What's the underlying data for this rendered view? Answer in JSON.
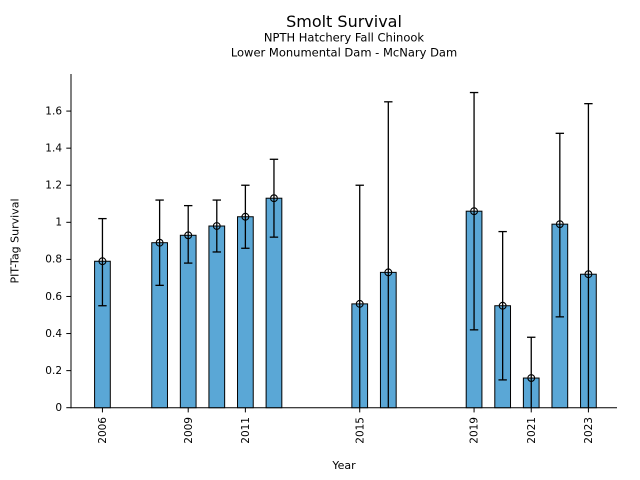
{
  "chart_data": {
    "type": "bar",
    "title": "Smolt Survival",
    "subtitle": [
      "NPTH Hatchery Fall Chinook",
      "Lower Monumental Dam - McNary Dam"
    ],
    "xlabel": "Year",
    "ylabel": "PIT-Tag Survival",
    "xlim": [
      2004.9,
      2024.0
    ],
    "ylim": [
      0,
      1.8
    ],
    "x_tick_years": [
      2006,
      2009,
      2011,
      2015,
      2019,
      2021,
      2023
    ],
    "x_tick_labels": [
      "2006",
      "2009",
      "2011",
      "2015",
      "2019",
      "2021",
      "2023"
    ],
    "y_ticks": [
      0,
      0.2,
      0.4,
      0.6,
      0.8,
      1,
      1.2,
      1.4,
      1.6
    ],
    "y_tick_labels": [
      "0",
      "0.2",
      "0.4",
      "0.6",
      "0.8",
      "1",
      "1.2",
      "1.4",
      "1.6"
    ],
    "grid": false,
    "legend": false,
    "bar_width_years": 0.55,
    "marker": "open-circle",
    "error_caps": true,
    "colors": {
      "bar_fill": "#5AA7D6",
      "bar_edge": "#000000",
      "error_bar": "#000000",
      "marker_edge": "#000000",
      "text": "#000000",
      "background": "#FFFFFF"
    },
    "series": [
      {
        "year": 2006,
        "survival": 0.79,
        "ci_low": 0.55,
        "ci_high": 1.02
      },
      {
        "year": 2008,
        "survival": 0.89,
        "ci_low": 0.66,
        "ci_high": 1.12
      },
      {
        "year": 2009,
        "survival": 0.93,
        "ci_low": 0.78,
        "ci_high": 1.09
      },
      {
        "year": 2010,
        "survival": 0.98,
        "ci_low": 0.84,
        "ci_high": 1.12
      },
      {
        "year": 2011,
        "survival": 1.03,
        "ci_low": 0.86,
        "ci_high": 1.2
      },
      {
        "year": 2012,
        "survival": 1.13,
        "ci_low": 0.92,
        "ci_high": 1.34
      },
      {
        "year": 2015,
        "survival": 0.56,
        "ci_low": 0.0,
        "ci_high": 1.2
      },
      {
        "year": 2016,
        "survival": 0.73,
        "ci_low": 0.0,
        "ci_high": 1.65
      },
      {
        "year": 2019,
        "survival": 1.06,
        "ci_low": 0.42,
        "ci_high": 1.7
      },
      {
        "year": 2020,
        "survival": 0.55,
        "ci_low": 0.15,
        "ci_high": 0.95
      },
      {
        "year": 2021,
        "survival": 0.16,
        "ci_low": 0.0,
        "ci_high": 0.38
      },
      {
        "year": 2022,
        "survival": 0.99,
        "ci_low": 0.49,
        "ci_high": 1.48
      },
      {
        "year": 2023,
        "survival": 0.72,
        "ci_low": 0.0,
        "ci_high": 1.64
      }
    ]
  }
}
